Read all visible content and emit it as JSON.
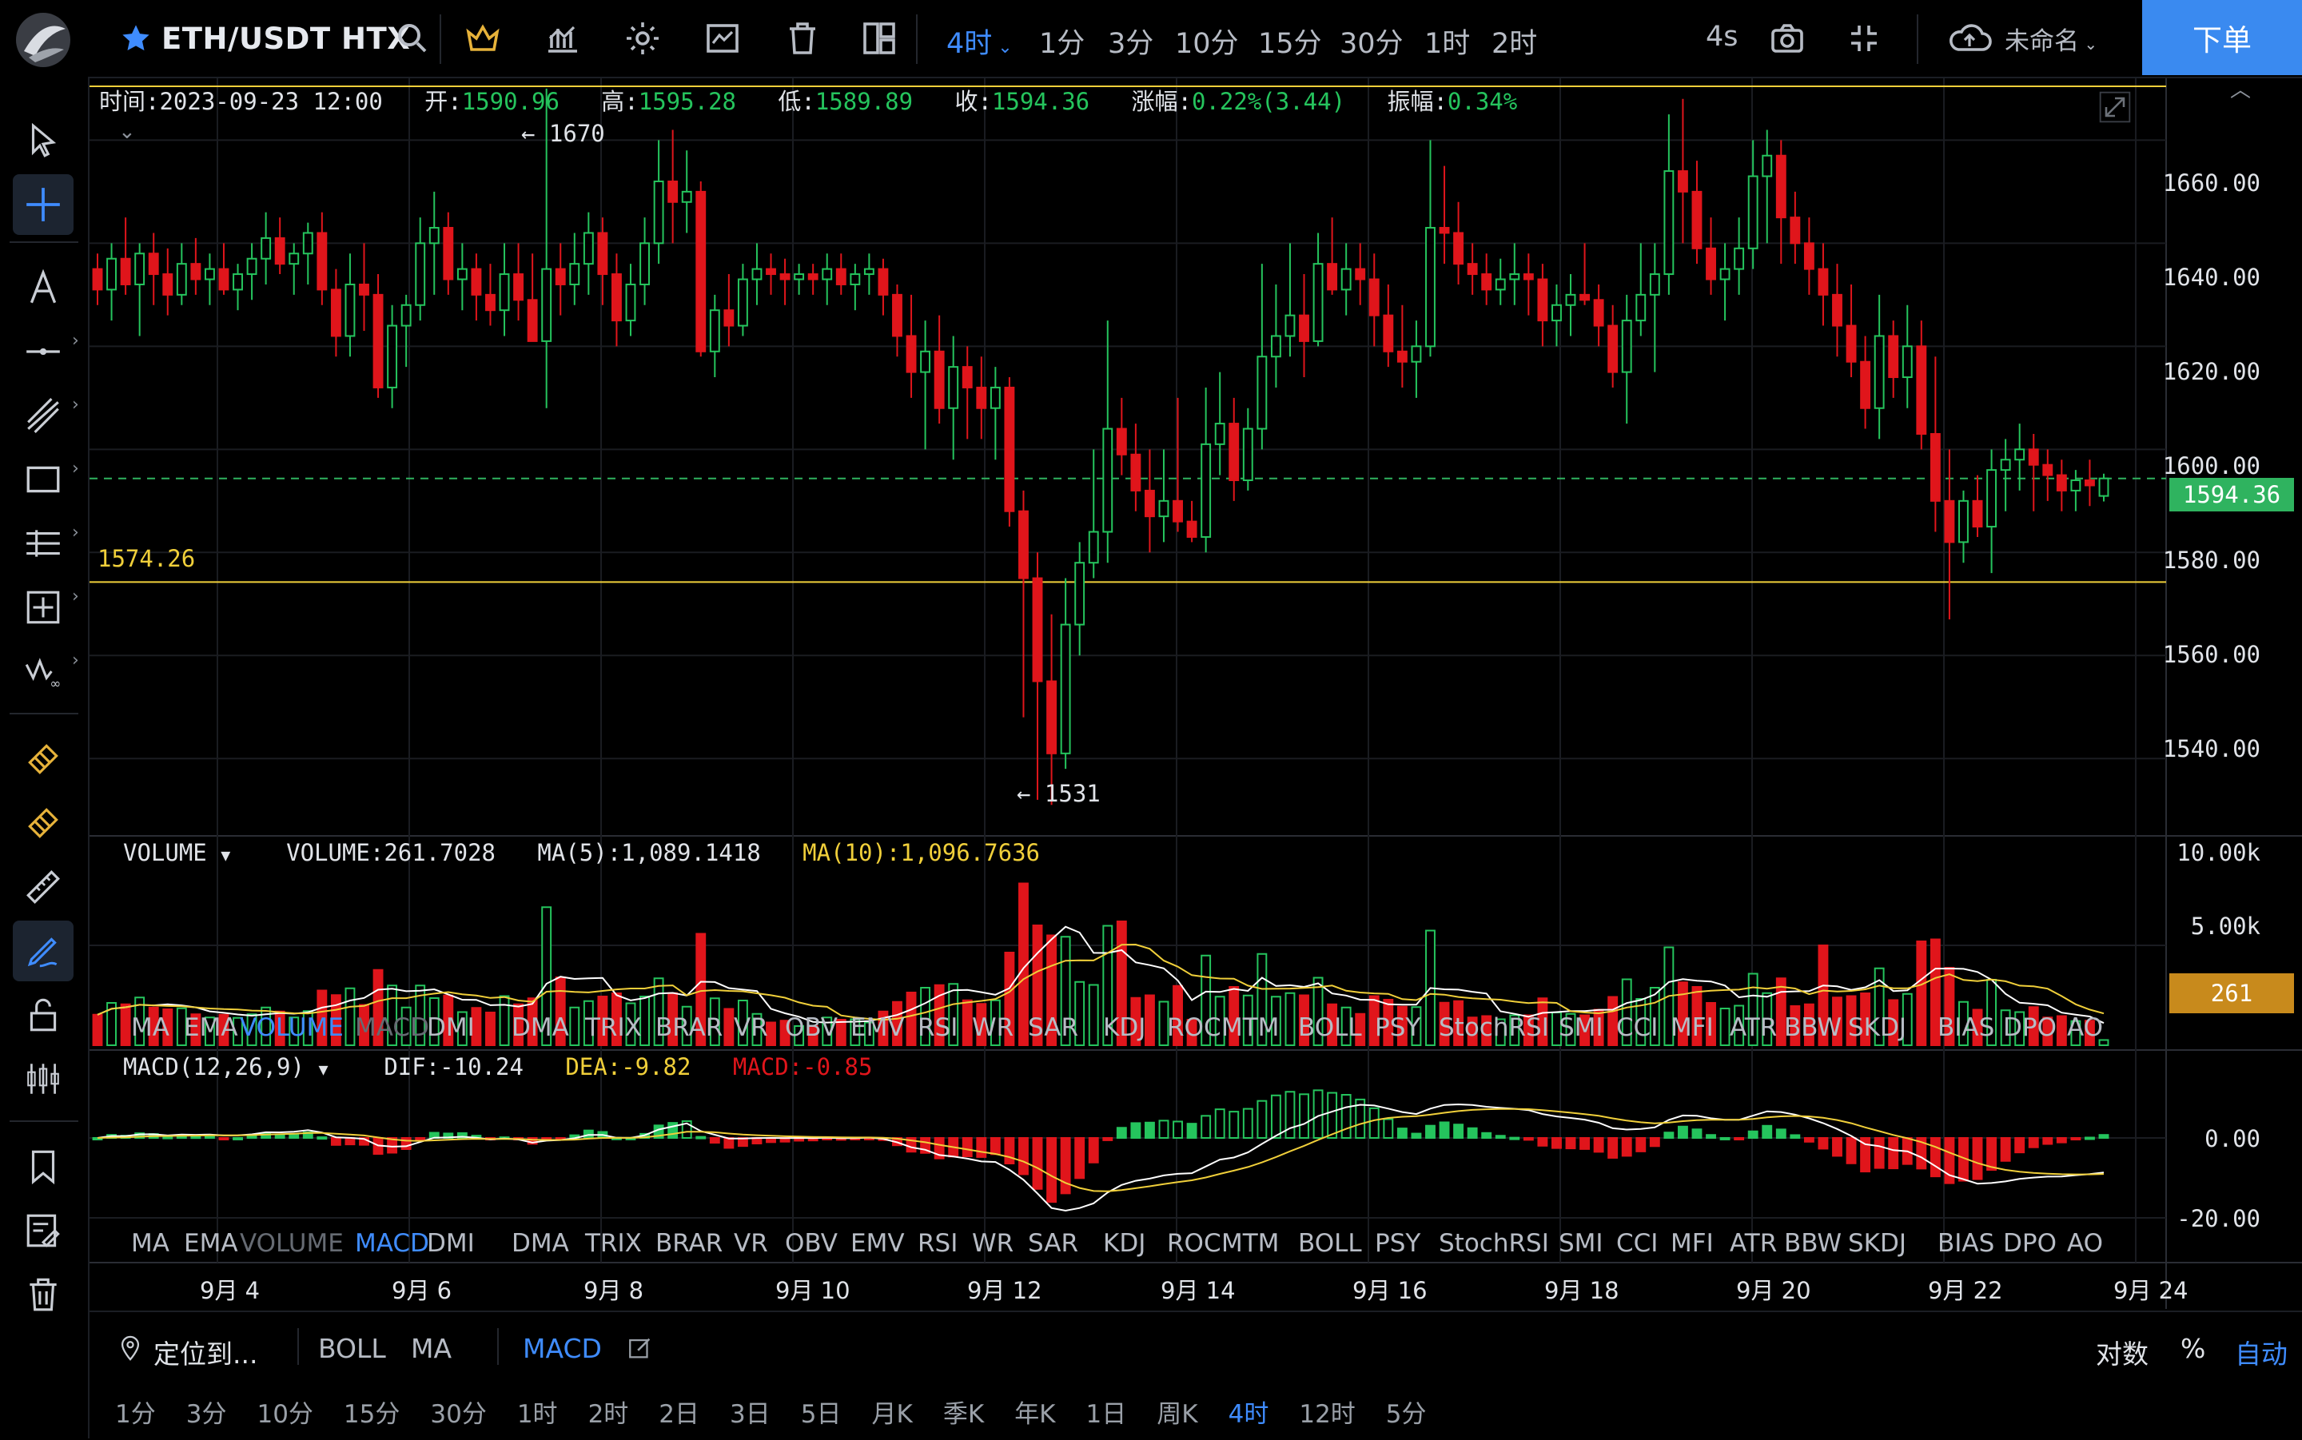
{
  "header": {
    "symbol": "ETH/USDT HTX",
    "intervals": [
      "4时",
      "1分",
      "3分",
      "10分",
      "15分",
      "30分",
      "1时",
      "2时"
    ],
    "active_interval": "4时",
    "refresh": "4s",
    "layout_name": "未命名",
    "order_button": "下单",
    "icons": [
      "star-icon",
      "search-icon",
      "crown-icon",
      "indicator-icon",
      "settings-icon",
      "compare-icon",
      "delete-icon",
      "layout-icon",
      "camera-icon",
      "collapse-icon",
      "cloud-icon"
    ]
  },
  "ohlc_bar": {
    "time_label": "时间:",
    "time": "2023-09-23 12:00",
    "open_label": "开:",
    "open": "1590.96",
    "high_label": "高:",
    "high": "1595.28",
    "low_label": "低:",
    "low": "1589.89",
    "close_label": "收:",
    "close": "1594.36",
    "change_label": "涨幅:",
    "change": "0.22%(3.44)",
    "amp_label": "振幅:",
    "amp": "0.34%"
  },
  "price_axis": [
    "1660.00",
    "1640.00",
    "1620.00",
    "1600.00",
    "1580.00",
    "1560.00",
    "1540.00"
  ],
  "current_price": "1594.36",
  "hline_price": "1574.26",
  "high_marker": "1670",
  "low_marker": "1531",
  "volume": {
    "name": "VOLUME",
    "value": "VOLUME:261.7028",
    "ma5": "MA(5):1,089.1418",
    "ma10": "MA(10):1,096.7636",
    "axis": [
      "10.00k",
      "5.00k"
    ],
    "tag": "261"
  },
  "macd": {
    "name": "MACD(12,26,9)",
    "dif": "DIF:-10.24",
    "dea": "DEA:-9.82",
    "macd": "MACD:-0.85",
    "axis": [
      "0.00",
      "-20.00"
    ]
  },
  "indicators": [
    "MA",
    "EMA",
    "VOLUME",
    "MACD",
    "DMI",
    "DMA",
    "TRIX",
    "BRAR",
    "VR",
    "OBV",
    "EMV",
    "RSI",
    "WR",
    "SAR",
    "KDJ",
    "ROC",
    "MTM",
    "BOLL",
    "PSY",
    "StochRSI",
    "SMI",
    "CCI",
    "MFI",
    "ATR",
    "BBW",
    "SKDJ",
    "BIAS",
    "DPO",
    "AO"
  ],
  "date_axis": [
    "9月 4",
    "9月 6",
    "9月 8",
    "9月 10",
    "9月 12",
    "9月 14",
    "9月 16",
    "9月 18",
    "9月 20",
    "9月 22",
    "9月 24"
  ],
  "bottom": {
    "locate": "定位到...",
    "studies": [
      "BOLL",
      "MA"
    ],
    "active_study": "MACD",
    "log": "对数",
    "percent": "%",
    "auto": "自动",
    "periods": [
      "1分",
      "3分",
      "10分",
      "15分",
      "30分",
      "1时",
      "2时",
      "2日",
      "3日",
      "5日",
      "月K",
      "季K",
      "年K",
      "1日",
      "周K",
      "4时",
      "12时",
      "5分"
    ],
    "active_period": "4时"
  },
  "colors": {
    "up": "#25c45d",
    "down": "#e0151b",
    "accent": "#3f8cff",
    "line": "#f0cf3a",
    "white": "#ffffff"
  },
  "chart_data": {
    "type": "candlestick",
    "title": "ETH/USDT HTX",
    "ylim": [
      1525,
      1672
    ],
    "candles": [
      [
        1635,
        1638,
        1628,
        1631
      ],
      [
        1631,
        1640,
        1625,
        1637
      ],
      [
        1637,
        1645,
        1630,
        1632
      ],
      [
        1632,
        1640,
        1622,
        1638
      ],
      [
        1638,
        1642,
        1628,
        1634
      ],
      [
        1634,
        1639,
        1626,
        1630
      ],
      [
        1630,
        1640,
        1628,
        1636
      ],
      [
        1636,
        1641,
        1630,
        1633
      ],
      [
        1633,
        1638,
        1628,
        1635
      ],
      [
        1635,
        1640,
        1630,
        1631
      ],
      [
        1631,
        1636,
        1627,
        1634
      ],
      [
        1634,
        1640,
        1629,
        1637
      ],
      [
        1637,
        1646,
        1632,
        1641
      ],
      [
        1641,
        1645,
        1634,
        1636
      ],
      [
        1636,
        1640,
        1630,
        1638
      ],
      [
        1638,
        1644,
        1632,
        1642
      ],
      [
        1642,
        1646,
        1628,
        1631
      ],
      [
        1631,
        1635,
        1618,
        1622
      ],
      [
        1622,
        1638,
        1618,
        1632
      ],
      [
        1632,
        1640,
        1623,
        1630
      ],
      [
        1630,
        1634,
        1610,
        1612
      ],
      [
        1612,
        1628,
        1608,
        1624
      ],
      [
        1624,
        1630,
        1616,
        1628
      ],
      [
        1628,
        1645,
        1625,
        1640
      ],
      [
        1640,
        1650,
        1630,
        1643
      ],
      [
        1643,
        1646,
        1630,
        1633
      ],
      [
        1633,
        1640,
        1627,
        1635
      ],
      [
        1635,
        1638,
        1625,
        1630
      ],
      [
        1630,
        1636,
        1624,
        1627
      ],
      [
        1627,
        1640,
        1622,
        1634
      ],
      [
        1634,
        1640,
        1625,
        1629
      ],
      [
        1629,
        1638,
        1622,
        1621
      ],
      [
        1621,
        1670,
        1608,
        1635
      ],
      [
        1635,
        1640,
        1626,
        1632
      ],
      [
        1632,
        1642,
        1628,
        1636
      ],
      [
        1636,
        1646,
        1630,
        1642
      ],
      [
        1642,
        1645,
        1628,
        1634
      ],
      [
        1634,
        1638,
        1620,
        1625
      ],
      [
        1625,
        1636,
        1622,
        1632
      ],
      [
        1632,
        1645,
        1628,
        1640
      ],
      [
        1640,
        1660,
        1636,
        1652
      ],
      [
        1652,
        1662,
        1640,
        1648
      ],
      [
        1648,
        1658,
        1642,
        1650
      ],
      [
        1650,
        1652,
        1618,
        1619
      ],
      [
        1619,
        1630,
        1614,
        1627
      ],
      [
        1627,
        1634,
        1620,
        1624
      ],
      [
        1624,
        1636,
        1622,
        1633
      ],
      [
        1633,
        1640,
        1628,
        1635
      ],
      [
        1635,
        1638,
        1630,
        1634
      ],
      [
        1634,
        1637,
        1628,
        1633
      ],
      [
        1633,
        1636,
        1630,
        1634
      ],
      [
        1634,
        1636,
        1630,
        1633
      ],
      [
        1633,
        1638,
        1628,
        1635
      ],
      [
        1635,
        1638,
        1630,
        1632
      ],
      [
        1632,
        1636,
        1627,
        1634
      ],
      [
        1634,
        1638,
        1630,
        1635
      ],
      [
        1635,
        1637,
        1626,
        1630
      ],
      [
        1630,
        1632,
        1618,
        1622
      ],
      [
        1622,
        1630,
        1610,
        1615
      ],
      [
        1615,
        1625,
        1600,
        1619
      ],
      [
        1619,
        1626,
        1605,
        1608
      ],
      [
        1608,
        1622,
        1598,
        1616
      ],
      [
        1616,
        1620,
        1602,
        1612
      ],
      [
        1612,
        1618,
        1602,
        1608
      ],
      [
        1608,
        1616,
        1598,
        1612
      ],
      [
        1612,
        1614,
        1585,
        1588
      ],
      [
        1588,
        1592,
        1548,
        1575
      ],
      [
        1575,
        1580,
        1532,
        1555
      ],
      [
        1555,
        1568,
        1531,
        1541
      ],
      [
        1541,
        1575,
        1538,
        1566
      ],
      [
        1566,
        1582,
        1560,
        1578
      ],
      [
        1578,
        1600,
        1575,
        1584
      ],
      [
        1584,
        1625,
        1578,
        1604
      ],
      [
        1604,
        1610,
        1595,
        1599
      ],
      [
        1599,
        1605,
        1588,
        1592
      ],
      [
        1592,
        1600,
        1580,
        1587
      ],
      [
        1587,
        1600,
        1582,
        1590
      ],
      [
        1590,
        1610,
        1584,
        1586
      ],
      [
        1586,
        1590,
        1582,
        1583
      ],
      [
        1583,
        1612,
        1580,
        1601
      ],
      [
        1601,
        1615,
        1595,
        1605
      ],
      [
        1605,
        1610,
        1590,
        1594
      ],
      [
        1594,
        1608,
        1592,
        1604
      ],
      [
        1604,
        1636,
        1600,
        1618
      ],
      [
        1618,
        1632,
        1612,
        1622
      ],
      [
        1622,
        1640,
        1618,
        1626
      ],
      [
        1626,
        1634,
        1614,
        1621
      ],
      [
        1621,
        1642,
        1620,
        1636
      ],
      [
        1636,
        1645,
        1630,
        1631
      ],
      [
        1631,
        1640,
        1626,
        1635
      ],
      [
        1635,
        1640,
        1628,
        1633
      ],
      [
        1633,
        1638,
        1620,
        1626
      ],
      [
        1626,
        1632,
        1616,
        1619
      ],
      [
        1619,
        1628,
        1612,
        1617
      ],
      [
        1617,
        1625,
        1610,
        1620
      ],
      [
        1620,
        1660,
        1618,
        1643
      ],
      [
        1643,
        1655,
        1636,
        1642
      ],
      [
        1642,
        1648,
        1632,
        1636
      ],
      [
        1636,
        1640,
        1630,
        1634
      ],
      [
        1634,
        1638,
        1628,
        1631
      ],
      [
        1631,
        1637,
        1628,
        1633
      ],
      [
        1633,
        1640,
        1628,
        1634
      ],
      [
        1634,
        1638,
        1626,
        1633
      ],
      [
        1633,
        1636,
        1620,
        1625
      ],
      [
        1625,
        1632,
        1620,
        1628
      ],
      [
        1628,
        1634,
        1622,
        1630
      ],
      [
        1630,
        1640,
        1628,
        1629
      ],
      [
        1629,
        1632,
        1620,
        1624
      ],
      [
        1624,
        1628,
        1612,
        1615
      ],
      [
        1615,
        1630,
        1605,
        1625
      ],
      [
        1625,
        1640,
        1622,
        1630
      ],
      [
        1630,
        1640,
        1615,
        1634
      ],
      [
        1634,
        1665,
        1630,
        1654
      ],
      [
        1654,
        1668,
        1640,
        1650
      ],
      [
        1650,
        1656,
        1636,
        1639
      ],
      [
        1639,
        1645,
        1630,
        1633
      ],
      [
        1633,
        1640,
        1625,
        1635
      ],
      [
        1635,
        1645,
        1630,
        1639
      ],
      [
        1639,
        1660,
        1635,
        1653
      ],
      [
        1653,
        1662,
        1640,
        1657
      ],
      [
        1657,
        1660,
        1636,
        1645
      ],
      [
        1645,
        1650,
        1636,
        1640
      ],
      [
        1640,
        1645,
        1630,
        1635
      ],
      [
        1635,
        1640,
        1624,
        1630
      ],
      [
        1630,
        1636,
        1618,
        1624
      ],
      [
        1624,
        1632,
        1614,
        1617
      ],
      [
        1617,
        1622,
        1604,
        1608
      ],
      [
        1608,
        1630,
        1602,
        1622
      ],
      [
        1622,
        1625,
        1610,
        1614
      ],
      [
        1614,
        1628,
        1608,
        1620
      ],
      [
        1620,
        1625,
        1600,
        1603
      ],
      [
        1603,
        1618,
        1584,
        1590
      ],
      [
        1590,
        1600,
        1567,
        1582
      ],
      [
        1582,
        1592,
        1578,
        1590
      ],
      [
        1590,
        1595,
        1583,
        1585
      ],
      [
        1585,
        1600,
        1576,
        1596
      ],
      [
        1596,
        1602,
        1588,
        1598
      ],
      [
        1598,
        1605,
        1592,
        1600
      ],
      [
        1600,
        1603,
        1588,
        1597
      ],
      [
        1597,
        1600,
        1590,
        1595
      ],
      [
        1595,
        1598,
        1588,
        1592
      ],
      [
        1592,
        1596,
        1588,
        1594
      ],
      [
        1594,
        1598,
        1589,
        1593
      ],
      [
        1590.96,
        1595.28,
        1589.89,
        1594.36
      ]
    ],
    "volume_ma": {
      "ma5": 1089.1418,
      "ma10": 1096.7636
    },
    "macd_values": {
      "dif": -10.24,
      "dea": -9.82,
      "macd": -0.85
    }
  }
}
